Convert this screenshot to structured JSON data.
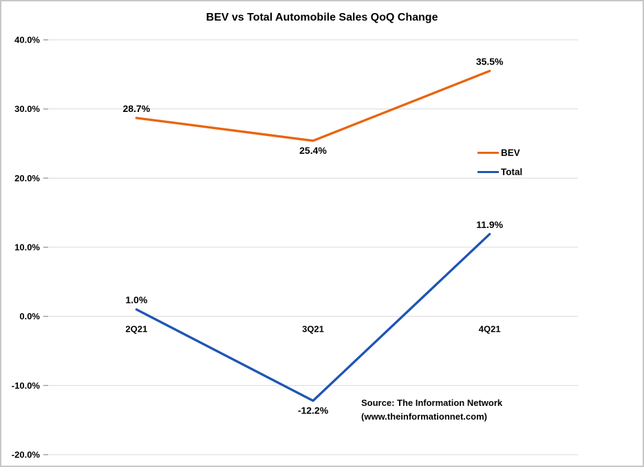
{
  "chart_data": {
    "type": "line",
    "title": "BEV vs Total Automobile Sales QoQ Change",
    "categories": [
      "2Q21",
      "3Q21",
      "4Q21"
    ],
    "series": [
      {
        "name": "BEV",
        "color": "#e8650d",
        "values": [
          28.7,
          25.4,
          35.5
        ],
        "labels": [
          "28.7%",
          "25.4%",
          "35.5%"
        ],
        "label_positions": [
          "above",
          "below",
          "above"
        ]
      },
      {
        "name": "Total",
        "color": "#1f55b4",
        "values": [
          1.0,
          -12.2,
          11.9
        ],
        "labels": [
          "1.0%",
          "-12.2%",
          "11.9%"
        ],
        "label_positions": [
          "above",
          "below",
          "above"
        ]
      }
    ],
    "y_axis": {
      "min": -20,
      "max": 40,
      "step": 10,
      "tick_labels": [
        "40.0%",
        "30.0%",
        "20.0%",
        "10.0%",
        "0.0%",
        "-10.0%",
        "-20.0%"
      ]
    },
    "gridline_color": "#d9d9d9",
    "legend_position": "right-middle",
    "grid": true,
    "source_lines": [
      "Source: The Information Network",
      "(www.theinformationnet.com)"
    ]
  }
}
